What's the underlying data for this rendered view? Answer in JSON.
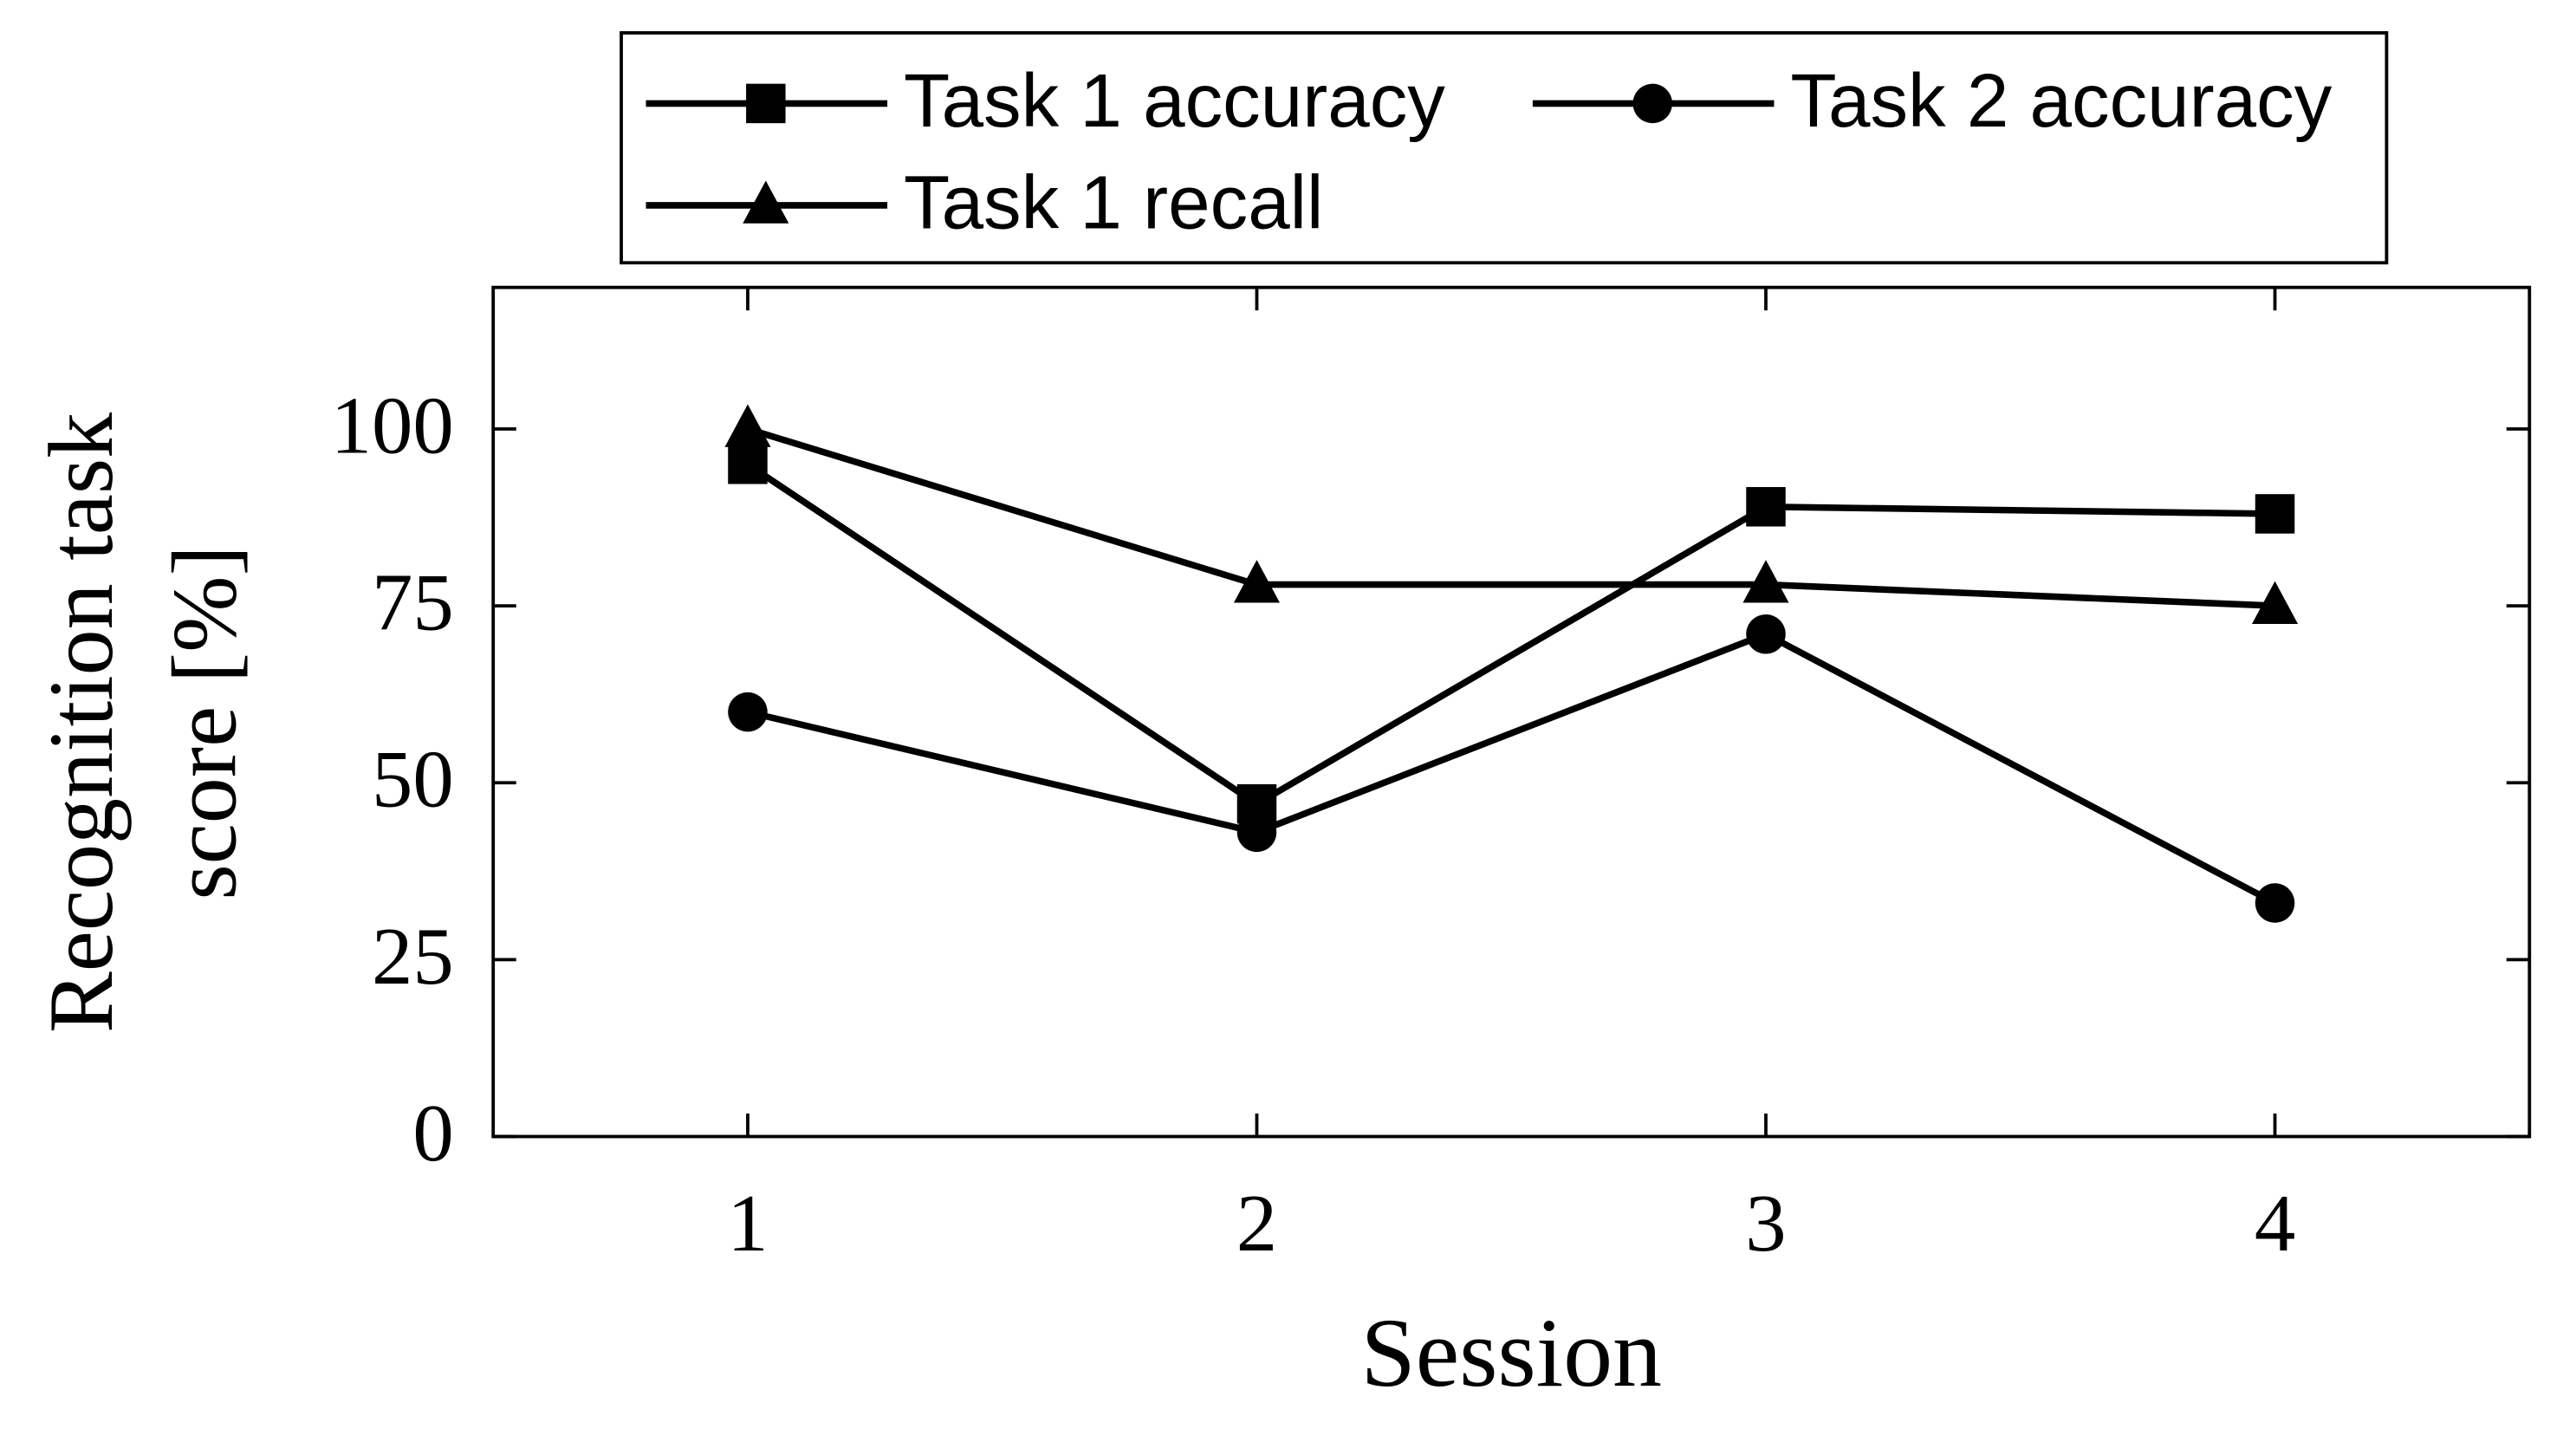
{
  "chart_data": {
    "type": "line",
    "xlabel": "Session",
    "ylabel": [
      "Recognition task",
      "score [%]"
    ],
    "x": [
      1,
      2,
      3,
      4
    ],
    "xlim": [
      0.5,
      4.5
    ],
    "xticks": [
      1,
      2,
      3,
      4
    ],
    "ylim": [
      0,
      120
    ],
    "yticks": [
      0,
      25,
      50,
      75,
      100
    ],
    "series": [
      {
        "name": "Task 1 accuracy",
        "color": "#000000",
        "marker": "square",
        "values": [
          95,
          47,
          89,
          88
        ]
      },
      {
        "name": "Task 2 accuracy",
        "color": "#000000",
        "marker": "circle",
        "values": [
          60,
          43,
          71,
          33
        ]
      },
      {
        "name": "Task 1 recall",
        "color": "#000000",
        "marker": "triangle",
        "values": [
          100,
          78,
          78,
          75
        ]
      }
    ]
  }
}
